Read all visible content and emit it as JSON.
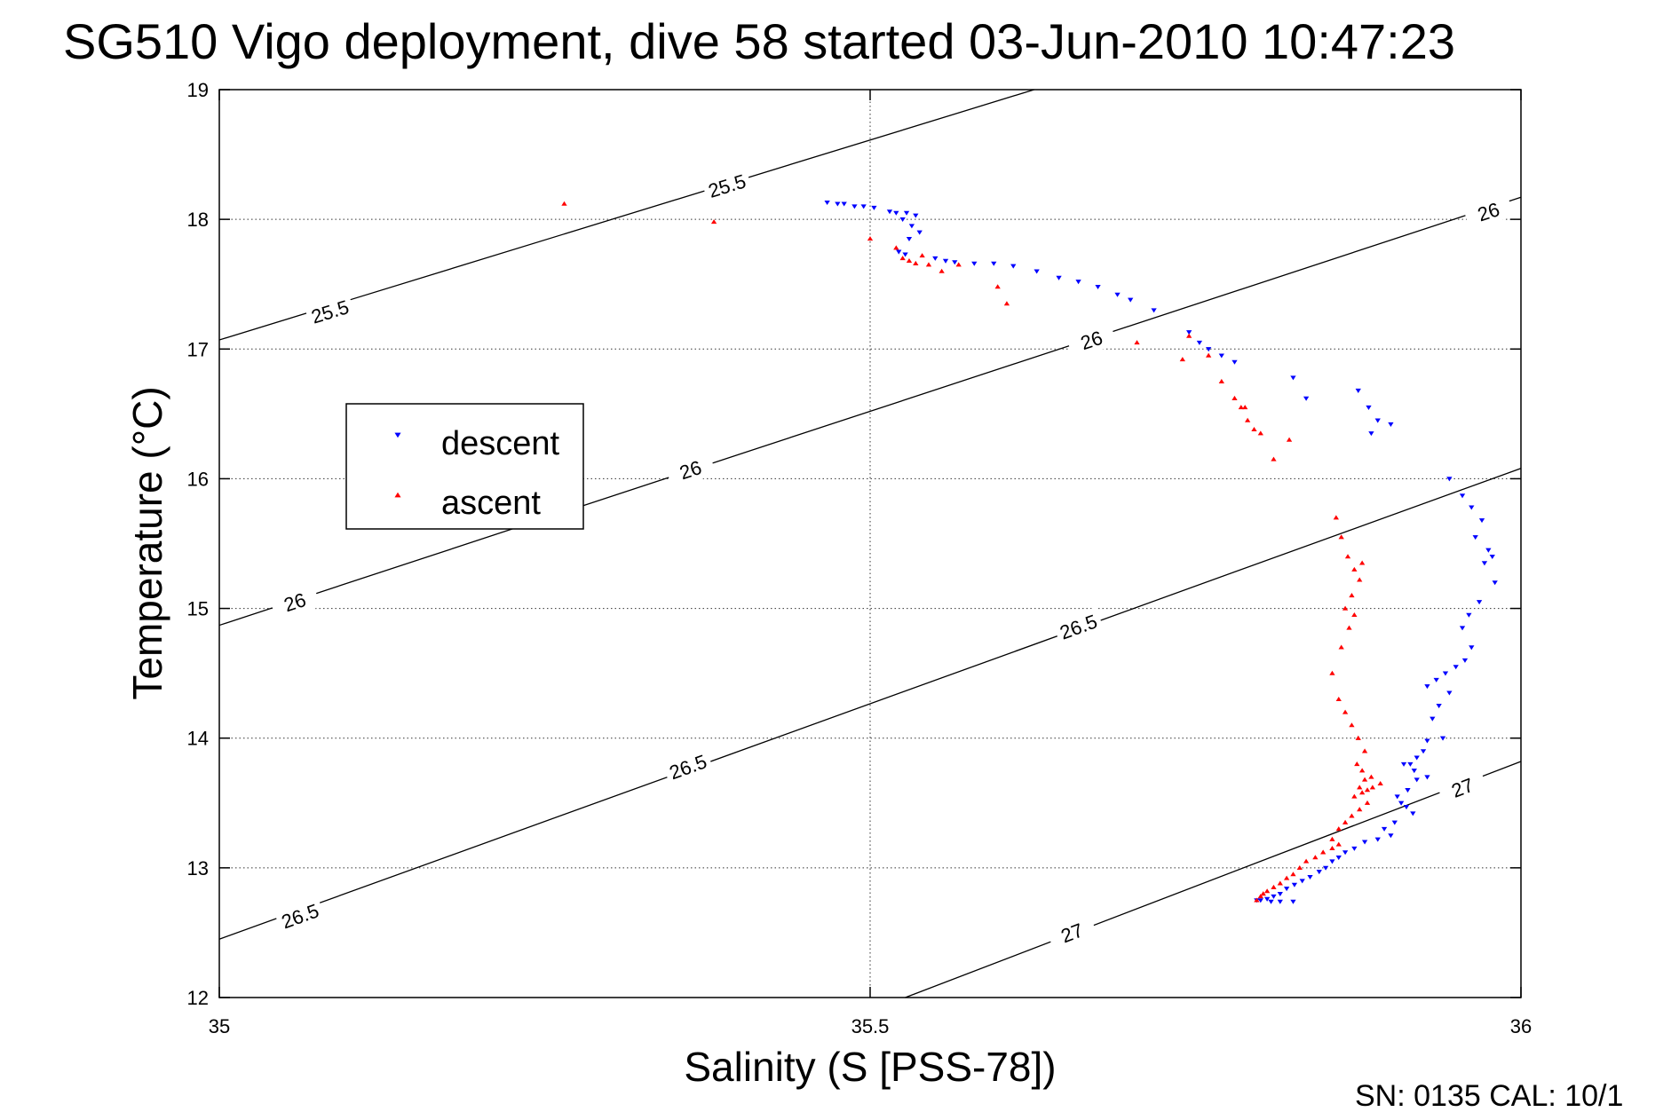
{
  "chart_data": {
    "type": "scatter",
    "title": "SG510 Vigo deployment, dive 58 started 03-Jun-2010 10:47:23",
    "xlabel": "Salinity (S [PSS-78])",
    "ylabel": "Temperature (°C)",
    "xlim": [
      35,
      36
    ],
    "ylim": [
      12,
      19
    ],
    "x_ticks": [
      35,
      35.5,
      36
    ],
    "y_ticks": [
      12,
      13,
      14,
      15,
      16,
      17,
      18,
      19
    ],
    "grid": true,
    "legend_position": "left",
    "footer": "SN: 0135  CAL: 10/1",
    "colors": {
      "descent": "#0000ff",
      "ascent": "#ff0000",
      "contour": "#000000"
    },
    "contours": [
      {
        "level": "25.5",
        "x": [
          35.0,
          35.626
        ],
        "y": [
          17.07,
          19.0
        ],
        "labels": [
          {
            "x": 35.085,
            "y": 17.29
          },
          {
            "x": 35.39,
            "y": 18.26
          }
        ]
      },
      {
        "level": "26",
        "x": [
          35.0,
          36.0
        ],
        "y": [
          14.87,
          18.17
        ],
        "labels": [
          {
            "x": 35.058,
            "y": 15.05
          },
          {
            "x": 35.362,
            "y": 16.07
          },
          {
            "x": 35.67,
            "y": 17.07
          },
          {
            "x": 35.975,
            "y": 18.06
          }
        ]
      },
      {
        "level": "26.5",
        "x": [
          35.0,
          36.0
        ],
        "y": [
          12.45,
          16.08
        ],
        "labels": [
          {
            "x": 35.062,
            "y": 12.63
          },
          {
            "x": 35.36,
            "y": 13.78
          },
          {
            "x": 35.66,
            "y": 14.86
          }
        ]
      },
      {
        "level": "27",
        "x": [
          35.527,
          36.0
        ],
        "y": [
          12.0,
          13.82
        ],
        "labels": [
          {
            "x": 35.655,
            "y": 12.5
          },
          {
            "x": 35.955,
            "y": 13.62
          }
        ]
      }
    ],
    "series": [
      {
        "name": "descent",
        "marker": "triangle-down",
        "x": [
          35.467,
          35.475,
          35.48,
          35.488,
          35.495,
          35.503,
          35.515,
          35.52,
          35.528,
          35.535,
          35.525,
          35.532,
          35.538,
          35.53,
          35.522,
          35.527,
          35.55,
          35.558,
          35.565,
          35.58,
          35.595,
          35.61,
          35.628,
          35.645,
          35.66,
          35.675,
          35.69,
          35.7,
          35.718,
          35.745,
          35.753,
          35.76,
          35.77,
          35.78,
          35.825,
          35.835,
          35.875,
          35.883,
          35.89,
          35.885,
          35.9,
          35.945,
          35.955,
          35.962,
          35.97,
          35.965,
          35.975,
          35.978,
          35.972,
          35.98,
          35.968,
          35.96,
          35.955,
          35.962,
          35.957,
          35.95,
          35.942,
          35.935,
          35.928,
          35.945,
          35.937,
          35.932,
          35.94,
          35.928,
          35.925,
          35.92,
          35.915,
          35.91,
          35.918,
          35.928,
          35.92,
          35.913,
          35.905,
          35.908,
          35.912,
          35.917,
          35.903,
          35.895,
          35.9,
          35.89,
          35.88,
          35.872,
          35.865,
          35.86,
          35.855,
          35.85,
          35.845,
          35.838,
          35.832,
          35.826,
          35.82,
          35.815,
          35.81,
          35.805,
          35.8,
          35.797,
          35.808,
          35.815,
          35.825
        ],
        "y": [
          18.13,
          18.12,
          18.12,
          18.1,
          18.1,
          18.09,
          18.06,
          18.05,
          18.05,
          18.03,
          18.0,
          17.95,
          17.9,
          17.85,
          17.75,
          17.73,
          17.7,
          17.68,
          17.67,
          17.66,
          17.66,
          17.64,
          17.6,
          17.55,
          17.52,
          17.48,
          17.42,
          17.38,
          17.3,
          17.13,
          17.05,
          17.0,
          16.95,
          16.9,
          16.78,
          16.62,
          16.68,
          16.55,
          16.45,
          16.35,
          16.42,
          16.0,
          15.87,
          15.78,
          15.68,
          15.55,
          15.45,
          15.4,
          15.35,
          15.2,
          15.05,
          14.95,
          14.85,
          14.7,
          14.6,
          14.55,
          14.5,
          14.45,
          14.4,
          14.35,
          14.25,
          14.15,
          14.0,
          13.98,
          13.9,
          13.85,
          13.8,
          13.8,
          13.75,
          13.7,
          13.68,
          13.6,
          13.55,
          13.5,
          13.47,
          13.42,
          13.35,
          13.3,
          13.25,
          13.22,
          13.2,
          13.15,
          13.12,
          13.08,
          13.05,
          13.0,
          12.97,
          12.93,
          12.9,
          12.87,
          12.84,
          12.8,
          12.78,
          12.76,
          12.75,
          12.75,
          12.74,
          12.74,
          12.74
        ]
      },
      {
        "name": "ascent",
        "marker": "triangle-up",
        "x": [
          35.265,
          35.38,
          35.5,
          35.52,
          35.525,
          35.53,
          35.535,
          35.54,
          35.545,
          35.555,
          35.568,
          35.598,
          35.605,
          35.705,
          35.74,
          35.745,
          35.76,
          35.77,
          35.78,
          35.785,
          35.79,
          35.795,
          35.788,
          35.8,
          35.81,
          35.822,
          35.858,
          35.862,
          35.867,
          35.872,
          35.876,
          35.87,
          35.865,
          35.878,
          35.872,
          35.868,
          35.862,
          35.855,
          35.86,
          35.865,
          35.87,
          35.875,
          35.88,
          35.874,
          35.878,
          35.885,
          35.88,
          35.876,
          35.872,
          35.878,
          35.882,
          35.886,
          35.892,
          35.882,
          35.876,
          35.87,
          35.865,
          35.86,
          35.855,
          35.86,
          35.855,
          35.848,
          35.842,
          35.835,
          35.83,
          35.825,
          35.82,
          35.815,
          35.81,
          35.805,
          35.8,
          35.797,
          35.802
        ],
        "y": [
          18.12,
          17.98,
          17.85,
          17.78,
          17.7,
          17.68,
          17.66,
          17.72,
          17.65,
          17.6,
          17.65,
          17.48,
          17.35,
          17.05,
          16.92,
          17.1,
          16.95,
          16.75,
          16.62,
          16.55,
          16.45,
          16.38,
          16.55,
          16.35,
          16.15,
          16.3,
          15.7,
          15.55,
          15.4,
          15.3,
          15.22,
          15.1,
          15.0,
          15.35,
          14.95,
          14.85,
          14.7,
          14.5,
          14.3,
          14.2,
          14.1,
          14.0,
          13.9,
          13.8,
          13.75,
          13.7,
          13.68,
          13.62,
          13.55,
          13.58,
          13.6,
          13.62,
          13.65,
          13.5,
          13.45,
          13.4,
          13.35,
          13.3,
          13.22,
          13.18,
          13.15,
          13.12,
          13.08,
          13.05,
          13.0,
          12.95,
          12.92,
          12.88,
          12.85,
          12.82,
          12.78,
          12.75,
          12.8
        ]
      }
    ]
  }
}
